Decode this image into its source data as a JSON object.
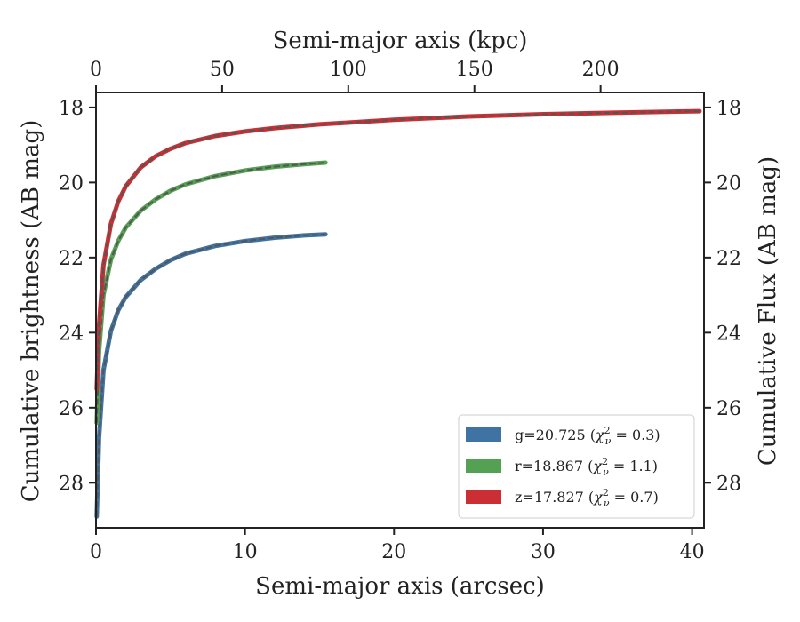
{
  "chart_data": {
    "type": "line",
    "xlabel": "Semi-major axis (arcsec)",
    "ylabel": "Cumulative brightness (AB mag)",
    "top_xlabel": "Semi-major axis (kpc)",
    "right_ylabel": "Cumulative Flux (AB mag)",
    "xlim": [
      0,
      40.8
    ],
    "ylim": [
      29.2,
      17.6
    ],
    "y_inverted": true,
    "top_xlim": [
      0,
      241
    ],
    "x_ticks": [
      "0",
      "10",
      "20",
      "30",
      "40"
    ],
    "top_x_ticks": [
      "0",
      "50",
      "100",
      "150",
      "200"
    ],
    "y_ticks": [
      "18",
      "20",
      "22",
      "24",
      "26",
      "28"
    ],
    "grid": false,
    "legend_position": "lower right",
    "series": [
      {
        "name": "g",
        "legend_text": "g=20.725",
        "chi2": "0.3",
        "color": "#3e73a4",
        "x": [
          0.05,
          0.2,
          0.5,
          1.0,
          1.5,
          2.0,
          3.0,
          4.0,
          5.0,
          6.0,
          8.0,
          10.0,
          12.0,
          14.0,
          15.4
        ],
        "y": [
          28.9,
          26.8,
          25.0,
          23.95,
          23.4,
          23.05,
          22.6,
          22.3,
          22.07,
          21.9,
          21.69,
          21.56,
          21.47,
          21.41,
          21.38
        ]
      },
      {
        "name": "r",
        "legend_text": "r=18.867",
        "chi2": "1.1",
        "color": "#55a153",
        "x": [
          0.05,
          0.2,
          0.5,
          1.0,
          1.5,
          2.0,
          3.0,
          4.0,
          5.0,
          6.0,
          8.0,
          10.0,
          12.0,
          14.0,
          15.4
        ],
        "y": [
          26.4,
          24.5,
          23.0,
          22.05,
          21.55,
          21.2,
          20.75,
          20.45,
          20.22,
          20.05,
          19.83,
          19.68,
          19.58,
          19.51,
          19.47
        ]
      },
      {
        "name": "z",
        "legend_text": "z=17.827",
        "chi2": "0.7",
        "color": "#cc2f33",
        "x": [
          0.05,
          0.2,
          0.5,
          1.0,
          1.5,
          2.0,
          3.0,
          4.0,
          5.0,
          6.0,
          8.0,
          10.0,
          12.0,
          15.0,
          20.0,
          25.0,
          30.0,
          35.0,
          40.5
        ],
        "y": [
          25.5,
          23.8,
          22.2,
          21.1,
          20.5,
          20.1,
          19.6,
          19.3,
          19.1,
          18.95,
          18.76,
          18.64,
          18.55,
          18.45,
          18.33,
          18.24,
          18.18,
          18.14,
          18.1
        ]
      }
    ]
  }
}
